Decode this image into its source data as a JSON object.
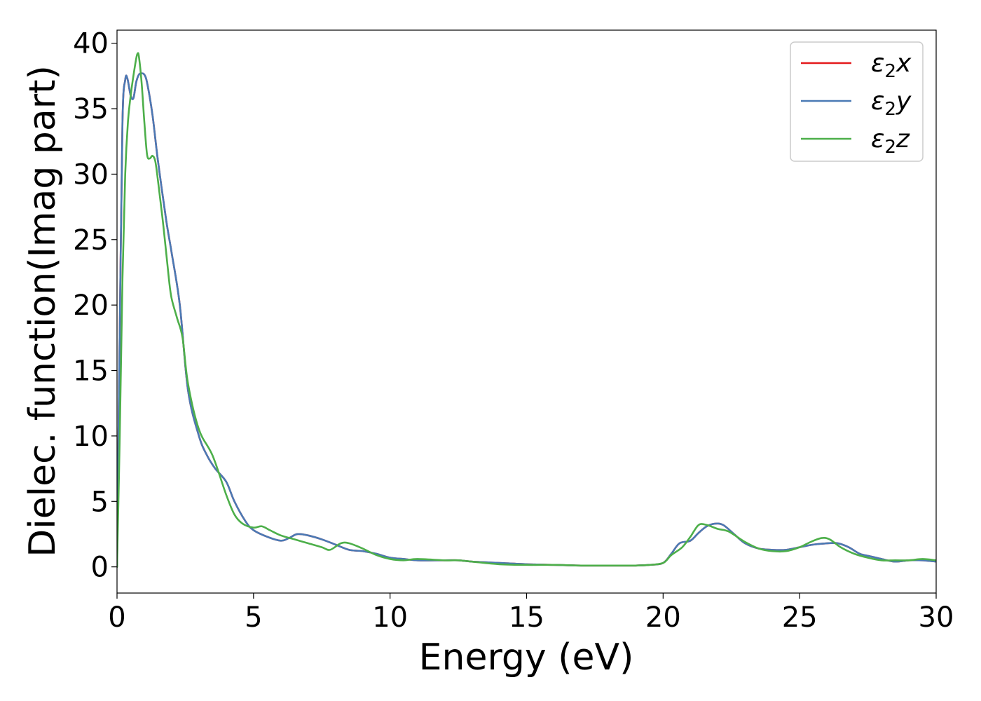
{
  "chart_data": {
    "type": "line",
    "title": "",
    "xlabel": "Energy (eV)",
    "ylabel": "Dielec. function(Imag part)",
    "xlim": [
      0,
      30
    ],
    "ylim": [
      -2,
      41
    ],
    "xticks": [
      0,
      5,
      10,
      15,
      20,
      25,
      30
    ],
    "yticks": [
      0,
      5,
      10,
      15,
      20,
      25,
      30,
      35,
      40
    ],
    "grid": false,
    "legend_position": "top-right",
    "series": [
      {
        "name": "ε₂x",
        "legend_base": "ε",
        "legend_sub": "2",
        "legend_suffix": "x",
        "color": "#e41a1c",
        "x": [
          0,
          0.1,
          0.2,
          0.3,
          0.38,
          0.5,
          0.6,
          0.7,
          0.8,
          0.9,
          1.0,
          1.1,
          1.3,
          1.5,
          1.8,
          2.0,
          2.3,
          2.6,
          3.0,
          3.3,
          3.6,
          4.0,
          4.3,
          4.7,
          5.0,
          5.5,
          6.0,
          6.3,
          6.6,
          7.0,
          7.5,
          8.0,
          8.5,
          9.0,
          9.5,
          10.0,
          10.5,
          11.0,
          12.0,
          12.5,
          13.0,
          14.0,
          15.0,
          16.0,
          17.0,
          18.0,
          19.0,
          19.5,
          20.0,
          20.3,
          20.6,
          21.0,
          21.3,
          21.6,
          21.9,
          22.2,
          22.6,
          23.0,
          23.5,
          24.0,
          24.5,
          25.0,
          25.5,
          26.0,
          26.4,
          26.8,
          27.2,
          27.6,
          28.0,
          28.5,
          29.0,
          29.5,
          30.0
        ],
        "values": [
          0,
          18,
          34,
          37.2,
          37.3,
          36.0,
          35.8,
          37.0,
          37.6,
          37.7,
          37.6,
          37.0,
          34.5,
          31.0,
          26.5,
          24.0,
          20.0,
          13.5,
          10.0,
          8.5,
          7.5,
          6.5,
          5.0,
          3.5,
          2.8,
          2.3,
          2.0,
          2.2,
          2.5,
          2.4,
          2.1,
          1.7,
          1.3,
          1.2,
          1.0,
          0.7,
          0.6,
          0.5,
          0.5,
          0.5,
          0.4,
          0.3,
          0.2,
          0.15,
          0.1,
          0.1,
          0.1,
          0.15,
          0.3,
          1.0,
          1.8,
          2.0,
          2.6,
          3.1,
          3.3,
          3.2,
          2.5,
          1.8,
          1.4,
          1.3,
          1.3,
          1.5,
          1.7,
          1.8,
          1.8,
          1.5,
          1.0,
          0.8,
          0.6,
          0.4,
          0.5,
          0.5,
          0.4
        ]
      },
      {
        "name": "ε₂y",
        "legend_base": "ε",
        "legend_sub": "2",
        "legend_suffix": "y",
        "color": "#4a7ab5",
        "x": [
          0,
          0.1,
          0.2,
          0.3,
          0.38,
          0.5,
          0.6,
          0.7,
          0.8,
          0.9,
          1.0,
          1.1,
          1.3,
          1.5,
          1.8,
          2.0,
          2.3,
          2.6,
          3.0,
          3.3,
          3.6,
          4.0,
          4.3,
          4.7,
          5.0,
          5.5,
          6.0,
          6.3,
          6.6,
          7.0,
          7.5,
          8.0,
          8.5,
          9.0,
          9.5,
          10.0,
          10.5,
          11.0,
          12.0,
          12.5,
          13.0,
          14.0,
          15.0,
          16.0,
          17.0,
          18.0,
          19.0,
          19.5,
          20.0,
          20.3,
          20.6,
          21.0,
          21.3,
          21.6,
          21.9,
          22.2,
          22.6,
          23.0,
          23.5,
          24.0,
          24.5,
          25.0,
          25.5,
          26.0,
          26.4,
          26.8,
          27.2,
          27.6,
          28.0,
          28.5,
          29.0,
          29.5,
          30.0
        ],
        "values": [
          0,
          18,
          34,
          37.2,
          37.3,
          36.0,
          35.8,
          37.0,
          37.6,
          37.7,
          37.6,
          37.0,
          34.5,
          31.0,
          26.5,
          24.0,
          20.0,
          13.5,
          10.0,
          8.5,
          7.5,
          6.5,
          5.0,
          3.5,
          2.8,
          2.3,
          2.0,
          2.2,
          2.5,
          2.4,
          2.1,
          1.7,
          1.3,
          1.2,
          1.0,
          0.7,
          0.6,
          0.5,
          0.5,
          0.5,
          0.4,
          0.3,
          0.2,
          0.15,
          0.1,
          0.1,
          0.1,
          0.15,
          0.3,
          1.0,
          1.8,
          2.0,
          2.6,
          3.1,
          3.3,
          3.2,
          2.5,
          1.8,
          1.4,
          1.3,
          1.3,
          1.5,
          1.7,
          1.8,
          1.8,
          1.5,
          1.0,
          0.8,
          0.6,
          0.4,
          0.5,
          0.5,
          0.4
        ]
      },
      {
        "name": "ε₂z",
        "legend_base": "ε",
        "legend_sub": "2",
        "legend_suffix": "z",
        "color": "#4daf4a",
        "x": [
          0,
          0.1,
          0.2,
          0.3,
          0.4,
          0.5,
          0.6,
          0.7,
          0.75,
          0.8,
          0.9,
          1.0,
          1.1,
          1.2,
          1.3,
          1.4,
          1.5,
          1.7,
          1.9,
          2.0,
          2.2,
          2.4,
          2.6,
          3.0,
          3.5,
          4.0,
          4.3,
          4.6,
          5.0,
          5.3,
          5.6,
          6.0,
          6.5,
          7.0,
          7.5,
          7.8,
          8.2,
          8.5,
          9.0,
          9.5,
          10.0,
          10.5,
          11.0,
          12.0,
          12.5,
          13.0,
          14.0,
          15.0,
          16.0,
          17.0,
          18.0,
          19.0,
          19.5,
          20.0,
          20.3,
          20.7,
          21.0,
          21.3,
          21.6,
          22.0,
          22.4,
          23.0,
          23.5,
          24.0,
          24.5,
          25.0,
          25.4,
          25.8,
          26.1,
          26.5,
          27.0,
          27.5,
          28.0,
          28.5,
          29.0,
          29.5,
          30.0
        ],
        "values": [
          0,
          10,
          22,
          30,
          34,
          36,
          37.5,
          38.8,
          39.2,
          39.0,
          37.0,
          34.0,
          31.5,
          31.2,
          31.4,
          31.0,
          29.5,
          26.0,
          22.0,
          20.5,
          19.0,
          17.5,
          14.0,
          10.5,
          8.5,
          5.5,
          4.0,
          3.3,
          3.0,
          3.1,
          2.8,
          2.4,
          2.1,
          1.8,
          1.5,
          1.3,
          1.8,
          1.8,
          1.4,
          0.9,
          0.6,
          0.5,
          0.6,
          0.5,
          0.5,
          0.4,
          0.2,
          0.15,
          0.15,
          0.1,
          0.1,
          0.1,
          0.15,
          0.3,
          0.9,
          1.5,
          2.3,
          3.2,
          3.2,
          2.9,
          2.7,
          1.9,
          1.4,
          1.2,
          1.2,
          1.5,
          1.9,
          2.2,
          2.1,
          1.5,
          1.0,
          0.7,
          0.5,
          0.5,
          0.5,
          0.6,
          0.5
        ]
      }
    ]
  }
}
